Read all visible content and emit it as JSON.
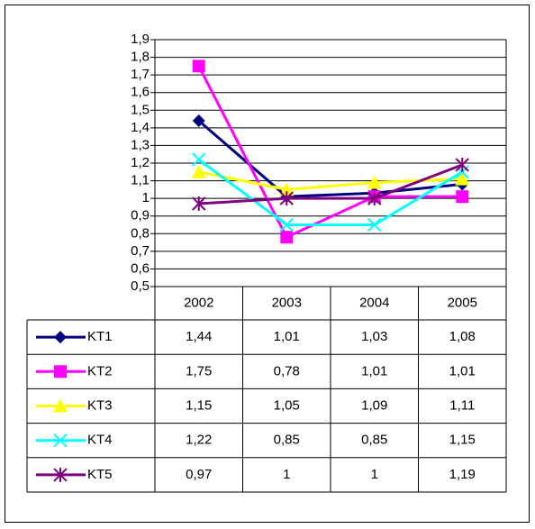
{
  "chart_data": {
    "type": "line",
    "categories": [
      "2002",
      "2003",
      "2004",
      "2005"
    ],
    "ylim": [
      0.5,
      1.9
    ],
    "yticks": [
      {
        "value": 0.5,
        "label": "0,5"
      },
      {
        "value": 0.6,
        "label": "0,6"
      },
      {
        "value": 0.7,
        "label": "0,7"
      },
      {
        "value": 0.8,
        "label": "0,8"
      },
      {
        "value": 0.9,
        "label": "0,9"
      },
      1,
      {
        "value": 1.1,
        "label": "1,1"
      },
      {
        "value": 1.2,
        "label": "1,2"
      },
      {
        "value": 1.3,
        "label": "1,3"
      },
      {
        "value": 1.4,
        "label": "1,4"
      },
      {
        "value": 1.5,
        "label": "1,5"
      },
      {
        "value": 1.6,
        "label": "1,6"
      },
      {
        "value": 1.7,
        "label": "1,7"
      },
      {
        "value": 1.8,
        "label": "1,8"
      },
      {
        "value": 1.9,
        "label": "1,9"
      }
    ],
    "grid": true,
    "series": [
      {
        "name": "KT1",
        "color": "#000080",
        "marker": "diamond",
        "values": [
          1.44,
          1.01,
          1.03,
          1.08
        ],
        "value_labels": [
          "1,44",
          "1,01",
          "1,03",
          "1,08"
        ]
      },
      {
        "name": "KT2",
        "color": "#ff00ff",
        "marker": "square",
        "values": [
          1.75,
          0.78,
          1.01,
          1.01
        ],
        "value_labels": [
          "1,75",
          "0,78",
          "1,01",
          "1,01"
        ]
      },
      {
        "name": "KT3",
        "color": "#ffff00",
        "marker": "triangle",
        "values": [
          1.15,
          1.05,
          1.09,
          1.11
        ],
        "value_labels": [
          "1,15",
          "1,05",
          "1,09",
          "1,11"
        ]
      },
      {
        "name": "KT4",
        "color": "#00ffff",
        "marker": "x",
        "values": [
          1.22,
          0.85,
          0.85,
          1.15
        ],
        "value_labels": [
          "1,22",
          "0,85",
          "0,85",
          "1,15"
        ]
      },
      {
        "name": "KT5",
        "color": "#800080",
        "marker": "star",
        "values": [
          0.97,
          1,
          1,
          1.19
        ],
        "value_labels": [
          "0,97",
          "1",
          "1",
          "1,19"
        ]
      }
    ]
  }
}
